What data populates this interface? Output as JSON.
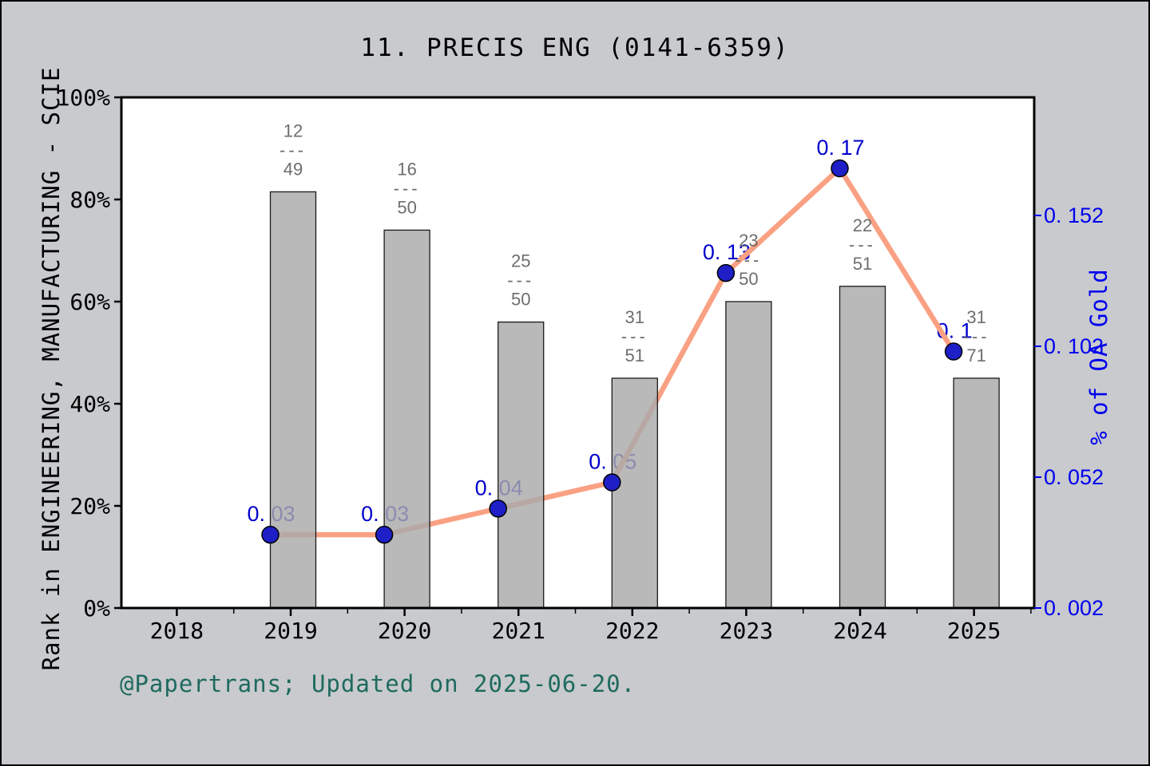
{
  "title": "11. PRECIS ENG (0141-6359)",
  "footer": "@Papertrans; Updated on 2025-06-20.",
  "axes": {
    "left": {
      "label": "Rank in ENGINEERING, MANUFACTURING - SCIE",
      "ticks": [
        "0%",
        "20%",
        "40%",
        "60%",
        "80%",
        "100%"
      ]
    },
    "right": {
      "label": "% of OA Gold",
      "ticks": [
        "0. 002",
        "0. 052",
        "0. 102",
        "0. 152"
      ]
    },
    "x": {
      "ticks": [
        "2018",
        "2019",
        "2020",
        "2021",
        "2022",
        "2023",
        "2024",
        "2025"
      ]
    }
  },
  "chart_data": [
    {
      "type": "bar",
      "title": "11. PRECIS ENG (0141-6359)",
      "categories": [
        "2019",
        "2020",
        "2021",
        "2022",
        "2023",
        "2024",
        "2025"
      ],
      "values": [
        81.5,
        74,
        56,
        45,
        60,
        63,
        45
      ],
      "bar_labels": [
        "12/49",
        "16/50",
        "25/50",
        "31/51",
        "23/50",
        "22/51",
        "31/71"
      ],
      "xlabel": "",
      "ylabel": "Rank in ENGINEERING, MANUFACTURING - SCIE",
      "ylim": [
        0,
        100
      ],
      "y_tick_values": [
        0,
        20,
        40,
        60,
        80,
        100
      ],
      "grid": false,
      "legend": false
    },
    {
      "type": "line",
      "categories": [
        "2019",
        "2020",
        "2021",
        "2022",
        "2023",
        "2024",
        "2025"
      ],
      "values": [
        0.03,
        0.03,
        0.04,
        0.05,
        0.13,
        0.17,
        0.1
      ],
      "point_labels": [
        "0. 03",
        "0. 03",
        "0. 04",
        "0. 05",
        "0. 13",
        "0. 17",
        "0. 1"
      ],
      "ylabel": "% of OA Gold",
      "yaxis": "right",
      "ylim": [
        0.002,
        0.202
      ],
      "y_ticks": [
        0.002,
        0.052,
        0.102,
        0.152
      ],
      "y_tick_labels": [
        "0. 002",
        "0. 052",
        "0. 102",
        "0. 152"
      ],
      "grid": false,
      "legend": false
    }
  ],
  "colors": {
    "background": "#c8cacd",
    "plot_background": "#ffffff",
    "axis_spine": "#000000",
    "bar_fill": "#a9a9a9",
    "bar_border": "#1a1a1a",
    "line": "#faa183",
    "marker": "#1f1fc8",
    "marker_border": "#000000",
    "value_label": "#0000cc",
    "right_axis": "#0000ee",
    "fraction_label": "#6e6e6e",
    "footer_text": "#1e6a5f"
  }
}
